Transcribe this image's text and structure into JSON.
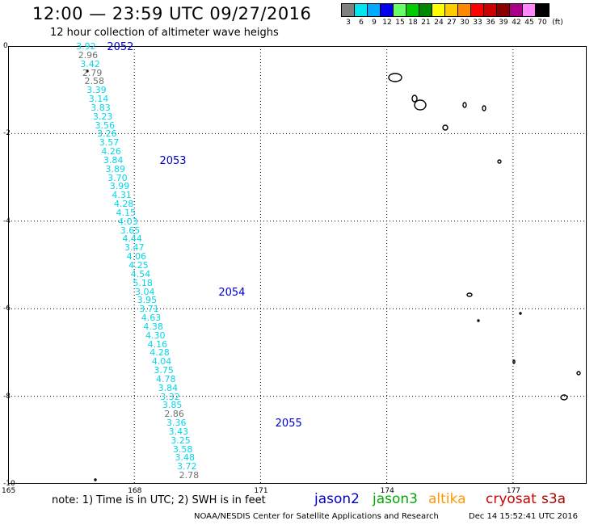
{
  "title": "12:00 — 23:59 UTC 09/27/2016",
  "subtitle": "12 hour collection of altimeter wave heighs",
  "scale": {
    "unit": "(ft)",
    "bins": [
      {
        "label": "3",
        "color": "#808080"
      },
      {
        "label": "6",
        "color": "#00e5ee"
      },
      {
        "label": "9",
        "color": "#00aaff"
      },
      {
        "label": "12",
        "color": "#0000ee"
      },
      {
        "label": "15",
        "color": "#66ff66"
      },
      {
        "label": "18",
        "color": "#00cc00"
      },
      {
        "label": "21",
        "color": "#008800"
      },
      {
        "label": "24",
        "color": "#ffff00"
      },
      {
        "label": "27",
        "color": "#ffcc00"
      },
      {
        "label": "30",
        "color": "#ff8800"
      },
      {
        "label": "33",
        "color": "#ff0000"
      },
      {
        "label": "36",
        "color": "#cc0000"
      },
      {
        "label": "39",
        "color": "#880000"
      },
      {
        "label": "42",
        "color": "#aa0088"
      },
      {
        "label": "45",
        "color": "#ff88ff"
      },
      {
        "label": "70",
        "color": "#000000"
      }
    ]
  },
  "axes": {
    "x_ticks": [
      "165",
      "168",
      "171",
      "174",
      "177"
    ],
    "x_range": [
      165,
      178.75
    ],
    "y_ticks": [
      "0",
      "-2",
      "-4",
      "-6",
      "-8",
      "-10"
    ],
    "y_range": [
      0,
      -10
    ]
  },
  "orbits": [
    {
      "label": "2052",
      "lon": 167.35,
      "lat": 0.0
    },
    {
      "label": "2053",
      "lon": 168.6,
      "lat": -2.6
    },
    {
      "label": "2054",
      "lon": 170.0,
      "lat": -5.6
    },
    {
      "label": "2055",
      "lon": 171.35,
      "lat": -8.6
    }
  ],
  "wave_heights": [
    {
      "v": "3.92",
      "lon": 166.85,
      "lat": 0.0,
      "c": "cyan"
    },
    {
      "v": "2.96",
      "lon": 166.9,
      "lat": -0.2,
      "c": "gray"
    },
    {
      "v": "3.42",
      "lon": 166.95,
      "lat": -0.4,
      "c": "cyan"
    },
    {
      "v": "2.79",
      "lon": 167.0,
      "lat": -0.6,
      "c": "gray"
    },
    {
      "v": "2.58",
      "lon": 167.05,
      "lat": -0.8,
      "c": "gray"
    },
    {
      "v": "3.39",
      "lon": 167.1,
      "lat": -1.0,
      "c": "cyan"
    },
    {
      "v": "3.14",
      "lon": 167.15,
      "lat": -1.2,
      "c": "cyan"
    },
    {
      "v": "3.83",
      "lon": 167.2,
      "lat": -1.4,
      "c": "cyan"
    },
    {
      "v": "3.23",
      "lon": 167.25,
      "lat": -1.6,
      "c": "cyan"
    },
    {
      "v": "3.56",
      "lon": 167.3,
      "lat": -1.8,
      "c": "cyan"
    },
    {
      "v": "3.26",
      "lon": 167.35,
      "lat": -2.0,
      "c": "cyan"
    },
    {
      "v": "3.57",
      "lon": 167.4,
      "lat": -2.2,
      "c": "cyan"
    },
    {
      "v": "4.26",
      "lon": 167.45,
      "lat": -2.4,
      "c": "cyan"
    },
    {
      "v": "3.84",
      "lon": 167.5,
      "lat": -2.6,
      "c": "cyan"
    },
    {
      "v": "3.89",
      "lon": 167.55,
      "lat": -2.8,
      "c": "cyan"
    },
    {
      "v": "3.70",
      "lon": 167.6,
      "lat": -3.0,
      "c": "cyan"
    },
    {
      "v": "3.99",
      "lon": 167.65,
      "lat": -3.2,
      "c": "cyan"
    },
    {
      "v": "4.31",
      "lon": 167.7,
      "lat": -3.4,
      "c": "cyan"
    },
    {
      "v": "4.28",
      "lon": 167.75,
      "lat": -3.6,
      "c": "cyan"
    },
    {
      "v": "4.15",
      "lon": 167.8,
      "lat": -3.8,
      "c": "cyan"
    },
    {
      "v": "4.03",
      "lon": 167.85,
      "lat": -4.0,
      "c": "cyan"
    },
    {
      "v": "3.65",
      "lon": 167.9,
      "lat": -4.2,
      "c": "cyan"
    },
    {
      "v": "4.44",
      "lon": 167.95,
      "lat": -4.4,
      "c": "cyan"
    },
    {
      "v": "3.47",
      "lon": 168.0,
      "lat": -4.6,
      "c": "cyan"
    },
    {
      "v": "4.06",
      "lon": 168.05,
      "lat": -4.8,
      "c": "cyan"
    },
    {
      "v": "4.25",
      "lon": 168.1,
      "lat": -5.0,
      "c": "cyan"
    },
    {
      "v": "4.54",
      "lon": 168.15,
      "lat": -5.2,
      "c": "cyan"
    },
    {
      "v": "5.18",
      "lon": 168.2,
      "lat": -5.4,
      "c": "cyan"
    },
    {
      "v": "3.04",
      "lon": 168.25,
      "lat": -5.6,
      "c": "cyan"
    },
    {
      "v": "3.95",
      "lon": 168.3,
      "lat": -5.8,
      "c": "cyan"
    },
    {
      "v": "3.71",
      "lon": 168.35,
      "lat": -6.0,
      "c": "cyan"
    },
    {
      "v": "4.63",
      "lon": 168.4,
      "lat": -6.2,
      "c": "cyan"
    },
    {
      "v": "4.38",
      "lon": 168.45,
      "lat": -6.4,
      "c": "cyan"
    },
    {
      "v": "4.30",
      "lon": 168.5,
      "lat": -6.6,
      "c": "cyan"
    },
    {
      "v": "4.16",
      "lon": 168.55,
      "lat": -6.8,
      "c": "cyan"
    },
    {
      "v": "4.28",
      "lon": 168.6,
      "lat": -7.0,
      "c": "cyan"
    },
    {
      "v": "4.04",
      "lon": 168.65,
      "lat": -7.2,
      "c": "cyan"
    },
    {
      "v": "3.75",
      "lon": 168.7,
      "lat": -7.4,
      "c": "cyan"
    },
    {
      "v": "4.78",
      "lon": 168.75,
      "lat": -7.6,
      "c": "cyan"
    },
    {
      "v": "3.84",
      "lon": 168.8,
      "lat": -7.8,
      "c": "cyan"
    },
    {
      "v": "3.32",
      "lon": 168.85,
      "lat": -8.0,
      "c": "cyan"
    },
    {
      "v": "3.85",
      "lon": 168.9,
      "lat": -8.2,
      "c": "cyan"
    },
    {
      "v": "2.86",
      "lon": 168.95,
      "lat": -8.4,
      "c": "gray"
    },
    {
      "v": "3.36",
      "lon": 169.0,
      "lat": -8.6,
      "c": "cyan"
    },
    {
      "v": "3.43",
      "lon": 169.05,
      "lat": -8.8,
      "c": "cyan"
    },
    {
      "v": "3.25",
      "lon": 169.1,
      "lat": -9.0,
      "c": "cyan"
    },
    {
      "v": "3.58",
      "lon": 169.15,
      "lat": -9.2,
      "c": "cyan"
    },
    {
      "v": "3.48",
      "lon": 169.2,
      "lat": -9.4,
      "c": "cyan"
    },
    {
      "v": "3.72",
      "lon": 169.25,
      "lat": -9.6,
      "c": "cyan"
    },
    {
      "v": "2.78",
      "lon": 169.3,
      "lat": -9.8,
      "c": "gray"
    }
  ],
  "colors": {
    "cyan": "#00d8e8",
    "gray": "#707070",
    "orbit": "#0000cc"
  },
  "note": "note: 1) Time is in UTC; 2) SWH is in feet",
  "satellites": [
    {
      "label": "jason2",
      "color": "#0000cc"
    },
    {
      "label": "jason3",
      "color": "#00aa00"
    },
    {
      "label": "altika",
      "color": "#ff9900"
    },
    {
      "label": "cryosat",
      "color": "#cc0000"
    },
    {
      "label": "s3a",
      "color": "#aa0000"
    }
  ],
  "credit": "NOAA/NESDIS Center for Satellite Applications and Research",
  "stamp": "Dec 14 15:52:41 UTC 2016"
}
